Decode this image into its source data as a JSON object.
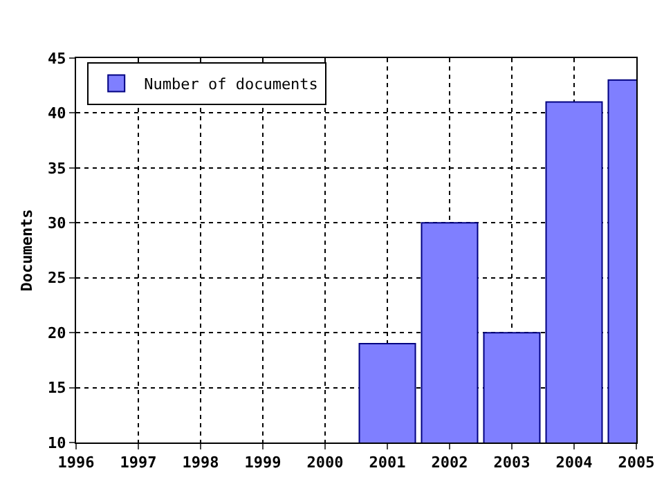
{
  "chart_data": {
    "type": "bar",
    "ylabel": "Documents",
    "x": [
      2001,
      2002,
      2003,
      2004,
      2005
    ],
    "series": [
      {
        "name": "Number of documents",
        "color": "#7f7fff",
        "values": [
          19,
          30,
          20,
          41,
          43
        ]
      }
    ],
    "xlim": [
      1996,
      2005
    ],
    "xticks": [
      1996,
      1997,
      1998,
      1999,
      2000,
      2001,
      2002,
      2003,
      2004,
      2005
    ],
    "ylim": [
      10,
      45
    ],
    "yticks": [
      10,
      15,
      20,
      25,
      30,
      35,
      40,
      45
    ],
    "grid": true,
    "legend": "top left"
  }
}
